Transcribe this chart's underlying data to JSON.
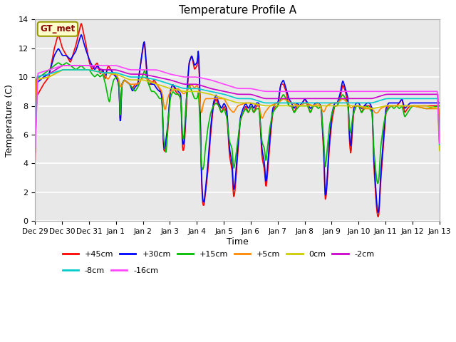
{
  "title": "Temperature Profile A",
  "xlabel": "Time",
  "ylabel": "Temperature (C)",
  "ylim": [
    0,
    14
  ],
  "annotation": "GT_met",
  "background_color": "#e8e8e8",
  "grid_color": "white",
  "series_order": [
    "+45cm",
    "+30cm",
    "+15cm",
    "+5cm",
    "0cm",
    "-2cm",
    "-8cm",
    "-16cm"
  ],
  "series": {
    "+45cm": {
      "color": "#ff0000",
      "lw": 1.2
    },
    "+30cm": {
      "color": "#0000ff",
      "lw": 1.2
    },
    "+15cm": {
      "color": "#00bb00",
      "lw": 1.2
    },
    "+5cm": {
      "color": "#ff8800",
      "lw": 1.2
    },
    "0cm": {
      "color": "#cccc00",
      "lw": 1.2
    },
    "-2cm": {
      "color": "#cc00cc",
      "lw": 1.2
    },
    "-8cm": {
      "color": "#00cccc",
      "lw": 1.2
    },
    "-16cm": {
      "color": "#ff44ff",
      "lw": 1.2
    }
  },
  "xtick_labels": [
    "Dec 29",
    "Dec 30",
    "Dec 31",
    "Jan 1",
    "Jan 2",
    "Jan 3",
    "Jan 4",
    "Jan 5",
    "Jan 6",
    "Jan 7",
    "Jan 8",
    "Jan 9",
    "Jan 10",
    "Jan 11",
    "Jan 12",
    "Jan 13"
  ],
  "xtick_positions": [
    0,
    1,
    2,
    3,
    4,
    5,
    6,
    7,
    8,
    9,
    10,
    11,
    12,
    13,
    14,
    15
  ],
  "legend_row1": [
    "+45cm",
    "+30cm",
    "+15cm",
    "+5cm",
    "0cm",
    "-2cm"
  ],
  "legend_row2": [
    "-8cm",
    "-16cm"
  ]
}
